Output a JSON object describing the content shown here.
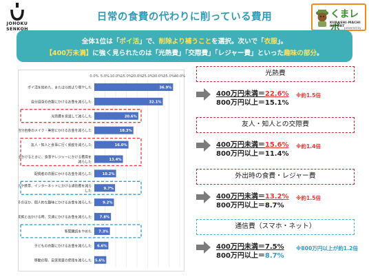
{
  "logo_left": {
    "line1": "JOHOKU",
    "line2": "SENKOH"
  },
  "title": "日常の食費の代わりに削っている費用",
  "logo_right": {
    "brand": "くまレポ",
    "sub": "KURASHI-MACHI REPORT",
    "sub2": "powered by"
  },
  "banner": {
    "line1": [
      {
        "t": "全体1位は「",
        "h": false
      },
      {
        "t": "ポイ活",
        "h": true
      },
      {
        "t": "」で、",
        "h": false
      },
      {
        "t": "削除より補うこと",
        "h": true
      },
      {
        "t": "を選択。次いで「",
        "h": false
      },
      {
        "t": "衣服",
        "h": true
      },
      {
        "t": "」。",
        "h": false
      }
    ],
    "line2": [
      {
        "t": "【400万未満】",
        "h": true
      },
      {
        "t": "に強く見られたのは「光熱費」「交際費」「レジャー費」といった",
        "h": false
      },
      {
        "t": "趣味の部分",
        "h": true
      },
      {
        "t": "。",
        "h": false
      }
    ]
  },
  "chart_data": {
    "type": "bar",
    "orientation": "horizontal",
    "xlim": [
      0,
      40
    ],
    "xticks": [
      "0.0%",
      "5.0%",
      "10.0%",
      "15.0%",
      "20.0%",
      "25.0%",
      "30.0%",
      "35.0%",
      "40.0%"
    ],
    "categories": [
      [
        "ポイ活を始めた、または以前より増やした"
      ],
      [
        "自分自身の衣服にかけるお金を減らした"
      ],
      [
        "光熱費を意識して減らした"
      ],
      [
        "自分自身のメイク・美容にかけるお金を減らした"
      ],
      [
        "友人・知人と食事に行く頻度を減らした"
      ],
      [
        "家族と出かけるときに、食事やレジャーにかける費用を",
        "減らした"
      ],
      [
        "配偶者の衣服にかけるお金を減らした"
      ],
      [
        "スマホや携帯、インターネットにかける通信費を減ら",
        "した"
      ],
      [
        "そのほか、個人的な趣味にかけるお金を減らした"
      ],
      [
        "家族と出かける時、交通にかけるお金を減らした"
      ],
      [
        "新聞購読をやめた"
      ],
      [
        "子どもの衣服にかけるお金を減らした"
      ],
      [
        "移動の際、自家用車の使用を減らした"
      ]
    ],
    "values": [
      36.9,
      32.1,
      20.6,
      18.3,
      16.0,
      13.4,
      10.2,
      9.7,
      9.2,
      7.8,
      7.3,
      6.6,
      5.6
    ],
    "value_labels": [
      "36.9%",
      "32.1%",
      "20.6%",
      "18.3%",
      "16.0%",
      "13.4%",
      "10.2%",
      "9.7%",
      "9.2%",
      "7.8%",
      "7.3%",
      "6.6%",
      "5.6%"
    ],
    "grid": true
  },
  "comparisons": [
    {
      "category": "光熱費",
      "low": "400万円未満＝22.6%",
      "high": "800万円以上＝15.1%",
      "note": "※約1.5倍",
      "style": "red"
    },
    {
      "category": "友人・知人との交際費",
      "low": "400万円未満＝15.6%",
      "high": "800万円以上＝11.4%",
      "note": "※約1.4倍",
      "style": "red"
    },
    {
      "category": "外出時の食費・レジャー費",
      "low": "400万円未満＝13.2%",
      "high": "800万円以上＝8.7%",
      "note": "※約1.5倍",
      "style": "red"
    },
    {
      "category": "通信費（スマホ・ネット）",
      "low": "400万円未満＝7.5%",
      "high": "800万円以上＝8.7%",
      "note": "※800万円以上が約1.2倍",
      "style": "blue"
    }
  ],
  "colors": {
    "accent": "#2e9bb8",
    "banner": "#3fb0b7",
    "highlight": "#ffe35a",
    "bar": "#4c70c3",
    "red": "#e53935",
    "blue": "#2e9bd6"
  }
}
